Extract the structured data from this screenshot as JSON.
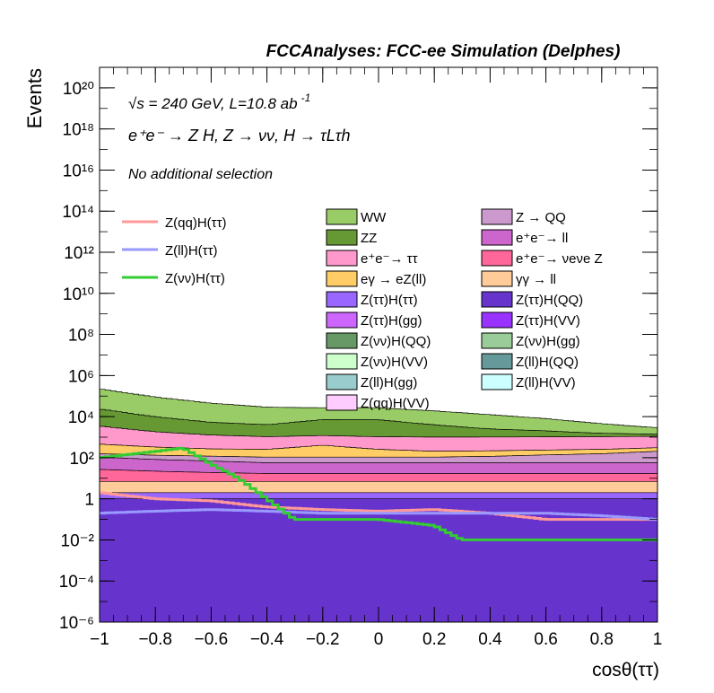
{
  "header": {
    "title": "FCCAnalyses: FCC-ee Simulation (Delphes)",
    "energy_line": "√s = 240 GeV, L=10.8 ab",
    "energy_line_sup": "-1",
    "process_line": "e⁺e⁻ → Z H, Z → νν, H → τLτh",
    "selection_note": "No additional selection"
  },
  "chart_data": {
    "type": "area",
    "ylog": true,
    "xlim": [
      -1,
      1
    ],
    "ylim": [
      1e-06,
      1e+21
    ],
    "xlabel": "cosθ(ττ)",
    "ylabel": "Events",
    "xticks": [
      "−1",
      "−0.8",
      "−0.6",
      "−0.4",
      "−0.2",
      "0",
      "0.2",
      "0.4",
      "0.6",
      "0.8",
      "1"
    ],
    "xtick_values": [
      -1,
      -0.8,
      -0.6,
      -0.4,
      -0.2,
      0,
      0.2,
      0.4,
      0.6,
      0.8,
      1
    ],
    "yticks": [
      "10⁻⁶",
      "10⁻⁴",
      "10⁻²",
      "1",
      "10²",
      "10⁴",
      "10⁶",
      "10⁸",
      "10¹⁰",
      "10¹²",
      "10¹⁴",
      "10¹⁶",
      "10¹⁸",
      "10²⁰"
    ],
    "ytick_exponents": [
      -6,
      -4,
      -2,
      0,
      2,
      4,
      6,
      8,
      10,
      12,
      14,
      16,
      18,
      20
    ],
    "grid": false,
    "legend_position": "top-left",
    "signals": [
      {
        "name": "Z(qq)H(ττ)",
        "color": "#ff9999",
        "x": [
          -1,
          -0.8,
          -0.6,
          -0.4,
          -0.2,
          0,
          0.2,
          0.4,
          0.6,
          0.8,
          1
        ],
        "values": [
          2.0,
          1.0,
          0.8,
          0.4,
          0.3,
          0.25,
          0.3,
          0.2,
          0.1,
          0.1,
          0.1
        ]
      },
      {
        "name": "Z(ll)H(ττ)",
        "color": "#9999ff",
        "x": [
          -1,
          -0.8,
          -0.6,
          -0.4,
          -0.2,
          0,
          0.2,
          0.4,
          0.6,
          0.8,
          1
        ],
        "values": [
          0.2,
          0.25,
          0.3,
          0.25,
          0.2,
          0.2,
          0.2,
          0.2,
          0.2,
          0.15,
          0.1
        ]
      },
      {
        "name": "Z(νν)H(ττ)",
        "color": "#33cc33",
        "x": [
          -1,
          -0.8,
          -0.7,
          -0.6,
          -0.5,
          -0.4,
          -0.3,
          -0.2,
          0,
          0.2,
          0.3,
          0.4,
          0.5,
          0.6,
          0.7,
          0.8,
          0.9,
          1
        ],
        "values": [
          100,
          200,
          300,
          50,
          10,
          1,
          0.1,
          0.1,
          0.1,
          0.05,
          0.01,
          0.01,
          0.01,
          0.01,
          0.01,
          0.01,
          0.01,
          0.01
        ]
      }
    ],
    "backgrounds_stacked_totals": [
      {
        "name": "WW",
        "color": "#99cc66",
        "x": [
          -1,
          -0.8,
          -0.6,
          -0.4,
          -0.2,
          0,
          0.2,
          0.4,
          0.6,
          0.8,
          1
        ],
        "values": [
          200000,
          80000,
          40000,
          25000,
          20000,
          20000,
          15000,
          10000,
          6000,
          3000,
          1500
        ]
      },
      {
        "name": "ZZ",
        "color": "#669933",
        "x": [
          -1,
          -0.8,
          -0.6,
          -0.4,
          -0.2,
          0,
          0.2,
          0.4,
          0.6,
          0.8,
          1
        ],
        "values": [
          20000,
          8000,
          4000,
          3000,
          6000,
          6000,
          3000,
          1500,
          1000,
          500,
          300
        ]
      },
      {
        "name": "e⁺e⁻→ ττ",
        "color": "#ff99cc",
        "x": [
          -1,
          -0.8,
          -0.6,
          -0.4,
          -0.2,
          0,
          0.2,
          0.4,
          0.6,
          0.8,
          1
        ],
        "values": [
          3000,
          1500,
          1000,
          800,
          800,
          800,
          800,
          800,
          800,
          800,
          800
        ]
      },
      {
        "name": "eγ → eZ(ll)",
        "color": "#ffcc66",
        "x": [
          -1,
          -0.8,
          -0.6,
          -0.4,
          -0.2,
          0,
          0.2,
          0.4,
          0.6,
          0.8,
          1
        ],
        "values": [
          300,
          200,
          150,
          150,
          300,
          150,
          100,
          100,
          100,
          100,
          100
        ]
      },
      {
        "name": "Z → QQ",
        "color": "#cc99cc",
        "x": [
          -1,
          -0.8,
          -0.6,
          -0.4,
          -0.2,
          0,
          0.2,
          0.4,
          0.6,
          0.8,
          1
        ],
        "values": [
          50,
          50,
          50,
          50,
          50,
          50,
          50,
          60,
          80,
          100,
          150
        ]
      },
      {
        "name": "e⁺e⁻→ ll",
        "color": "#cc66cc",
        "x": [
          -1,
          -0.8,
          -0.6,
          -0.4,
          -0.2,
          0,
          0.2,
          0.4,
          0.6,
          0.8,
          1
        ],
        "values": [
          80,
          60,
          50,
          40,
          40,
          40,
          40,
          40,
          40,
          40,
          40
        ]
      },
      {
        "name": "e⁺e⁻→ νeνe Z",
        "color": "#ff6699",
        "x": [
          -1,
          -0.8,
          -0.6,
          -0.4,
          -0.2,
          0,
          0.2,
          0.4,
          0.6,
          0.8,
          1
        ],
        "values": [
          20,
          15,
          12,
          10,
          10,
          10,
          10,
          10,
          10,
          10,
          10
        ]
      },
      {
        "name": "γγ → ll",
        "color": "#ffcc99",
        "x": [
          -1,
          -0.8,
          -0.6,
          -0.4,
          -0.2,
          0,
          0.2,
          0.4,
          0.6,
          0.8,
          1
        ],
        "values": [
          5,
          5,
          5,
          5,
          5,
          5,
          5,
          5,
          5,
          5,
          5
        ]
      },
      {
        "name": "Z(ττ)H(ττ)",
        "color": "#9966ff",
        "x": [
          -1,
          -0.8,
          -0.6,
          -0.4,
          -0.2,
          0,
          0.2,
          0.4,
          0.6,
          0.8,
          1
        ],
        "values": [
          1,
          1,
          1,
          1,
          1,
          1,
          1,
          1,
          1,
          1,
          1
        ]
      },
      {
        "name": "Z(ττ)H(QQ)",
        "color": "#6633cc",
        "x": [
          -1,
          -0.8,
          -0.6,
          -0.4,
          -0.2,
          0,
          0.2,
          0.4,
          0.6,
          0.8,
          1
        ],
        "values": [
          1,
          1,
          1,
          1,
          1,
          1,
          1,
          1,
          1,
          1,
          1
        ]
      }
    ],
    "legend_entries": [
      {
        "name": "WW",
        "color": "#99cc66"
      },
      {
        "name": "Z → QQ",
        "color": "#cc99cc"
      },
      {
        "name": "ZZ",
        "color": "#669933"
      },
      {
        "name": "e⁺e⁻→ ll",
        "color": "#cc66cc"
      },
      {
        "name": "e⁺e⁻→ ττ",
        "color": "#ff99cc"
      },
      {
        "name": "e⁺e⁻→ νeνe Z",
        "color": "#ff6699"
      },
      {
        "name": "eγ → eZ(ll)",
        "color": "#ffcc66"
      },
      {
        "name": "γγ → ll",
        "color": "#ffcc99"
      },
      {
        "name": "Z(ττ)H(ττ)",
        "color": "#9966ff"
      },
      {
        "name": "Z(ττ)H(QQ)",
        "color": "#6633cc"
      },
      {
        "name": "Z(ττ)H(gg)",
        "color": "#cc66ff"
      },
      {
        "name": "Z(ττ)H(VV)",
        "color": "#9933ff"
      },
      {
        "name": "Z(νν)H(QQ)",
        "color": "#669966"
      },
      {
        "name": "Z(νν)H(gg)",
        "color": "#99cc99"
      },
      {
        "name": "Z(νν)H(VV)",
        "color": "#ccffcc"
      },
      {
        "name": "Z(ll)H(QQ)",
        "color": "#669999"
      },
      {
        "name": "Z(ll)H(gg)",
        "color": "#99cccc"
      },
      {
        "name": "Z(ll)H(VV)",
        "color": "#ccffff"
      },
      {
        "name": "Z(qq)H(VV)",
        "color": "#ffccff"
      }
    ]
  }
}
